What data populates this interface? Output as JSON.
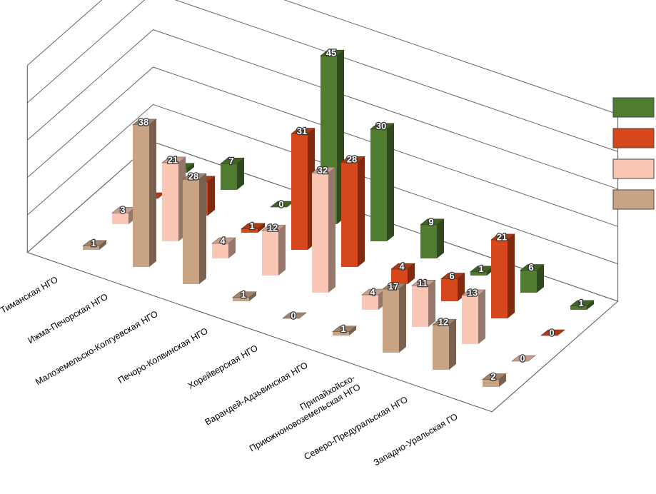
{
  "chart_data": {
    "type": "bar3d",
    "categories": [
      "Тиманская НГО",
      "Ижма-Печорская НГО",
      "Малоземельско-Колгуевская НГО",
      "Печоро-Колвинская НГО",
      "Хорейверская НГО",
      "Варандей-Адзьвинская НГО",
      "Припайхойско-\nПриюжноновоземельская НГО",
      "Северо-Предуральская НГО",
      "Западно-Уральская ГО"
    ],
    "series": [
      {
        "color": "#c8a484",
        "values": [
          1,
          38,
          28,
          1,
          0,
          1,
          17,
          12,
          2
        ]
      },
      {
        "color": "#f8c6b2",
        "values": [
          3,
          21,
          4,
          12,
          32,
          4,
          11,
          13,
          0
        ]
      },
      {
        "color": "#d6481b",
        "values": [
          0,
          9,
          1,
          31,
          28,
          4,
          6,
          21,
          0
        ]
      },
      {
        "color": "#507c30",
        "values": [
          1,
          7,
          0,
          45,
          30,
          9,
          1,
          6,
          1
        ]
      }
    ],
    "ylim": [
      0,
      50
    ],
    "yticks": [
      0,
      10,
      20,
      30,
      40,
      50
    ],
    "grid": true,
    "legend": "right"
  }
}
